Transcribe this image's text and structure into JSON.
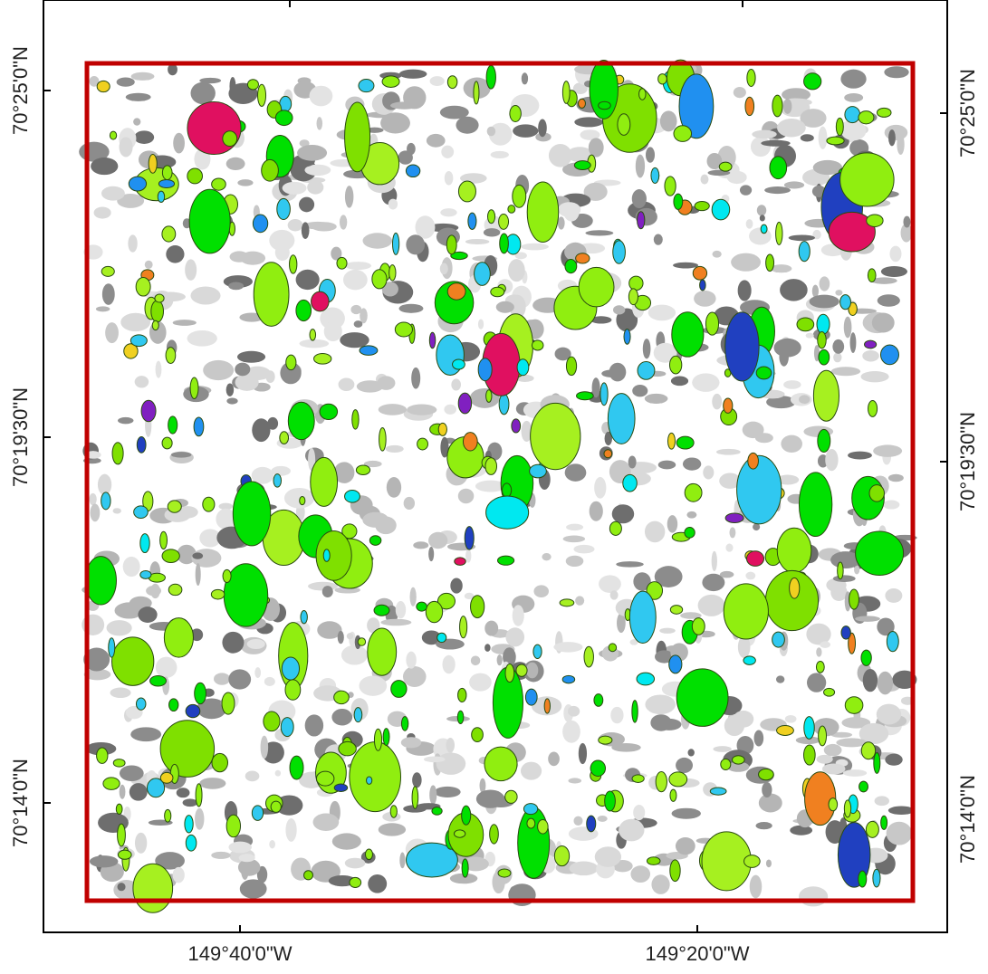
{
  "map": {
    "left_labels": [
      "70°25'0\"N",
      "70°19'30\"N",
      "70°14'0\"N"
    ],
    "right_labels": [
      "70°25'0\"N",
      "70°19'30\"N",
      "70°14'0\"N"
    ],
    "bottom_labels": [
      "149°40'0\"W",
      "149°20'0\"W"
    ]
  }
}
